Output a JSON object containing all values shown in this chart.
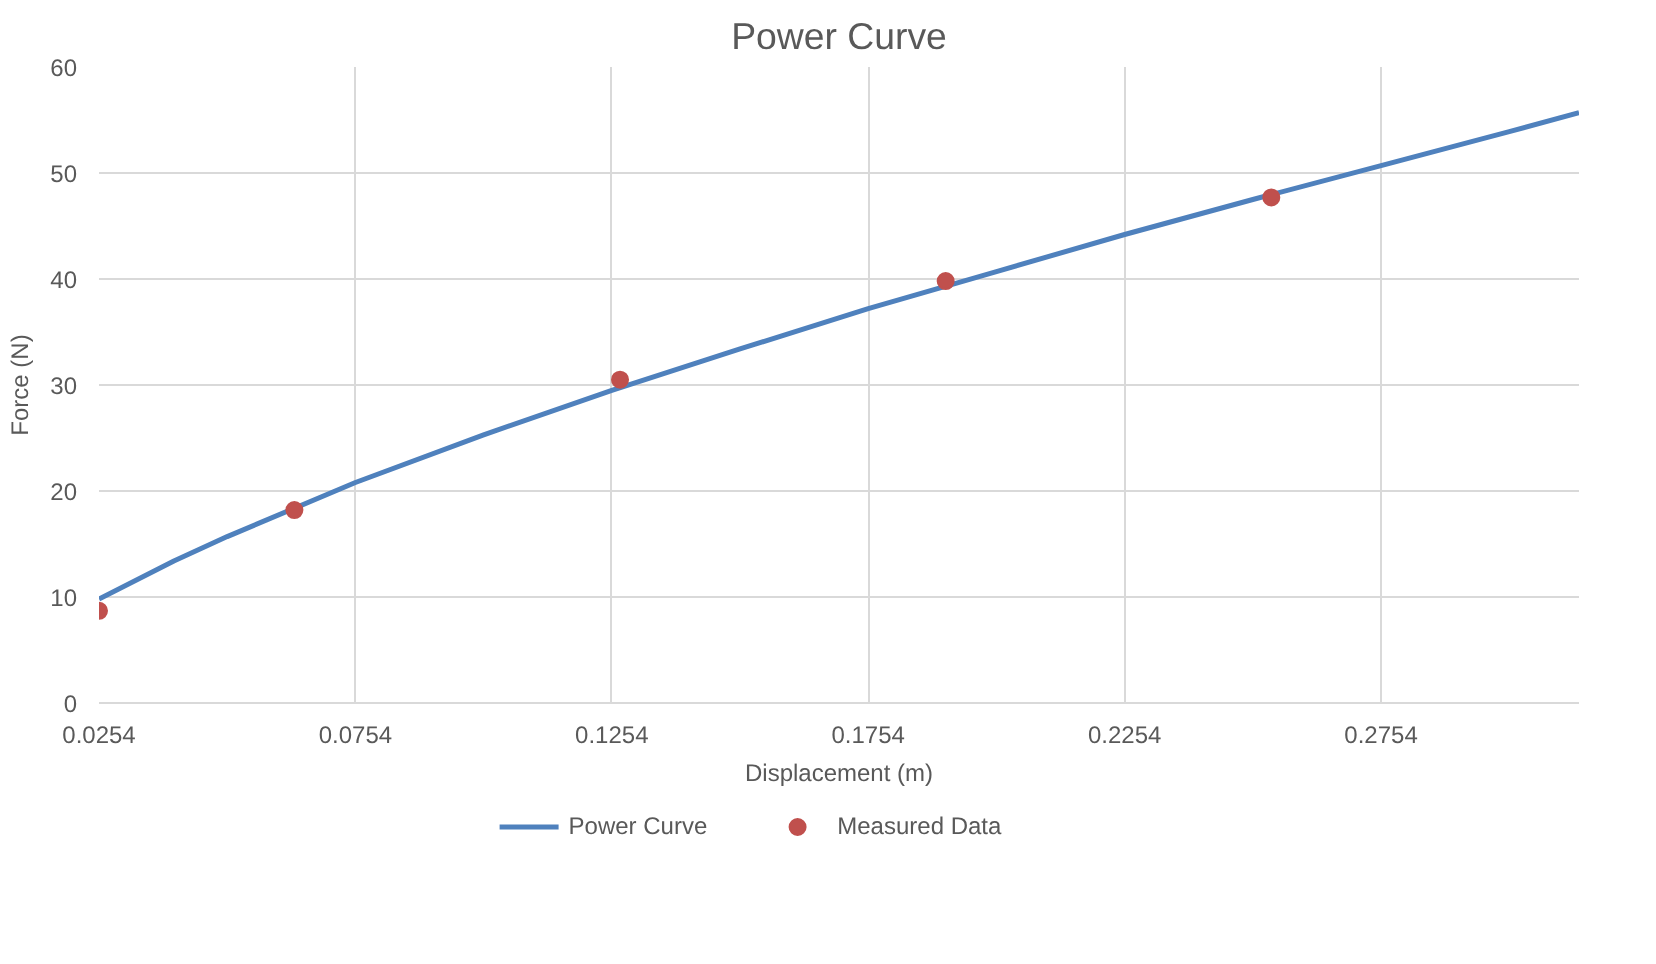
{
  "chart_data": {
    "type": "scatter",
    "title": "Power Curve",
    "xlabel": "Displacement (m)",
    "ylabel": "Force (N)",
    "xlim": [
      0.0254,
      0.314
    ],
    "ylim": [
      0,
      60
    ],
    "xticks": [
      0.0254,
      0.0754,
      0.1254,
      0.1754,
      0.2254,
      0.2754
    ],
    "yticks": [
      0,
      10,
      20,
      30,
      40,
      50,
      60
    ],
    "grid": true,
    "legend": "bottom",
    "series": [
      {
        "name": "Power Curve",
        "type": "line",
        "color": "#4f81bd",
        "marker": "none",
        "line_style": "solid",
        "x": [
          0.0254,
          0.04,
          0.0504,
          0.0754,
          0.1004,
          0.1254,
          0.1504,
          0.1754,
          0.2004,
          0.2254,
          0.2504,
          0.2754,
          0.3004,
          0.314
        ],
        "values": [
          9.8,
          13.4,
          15.7,
          20.8,
          25.3,
          29.5,
          33.4,
          37.2,
          40.7,
          44.2,
          47.5,
          50.7,
          53.9,
          55.7
        ]
      },
      {
        "name": "Measured Data",
        "color": "#c0504d",
        "marker": "circle",
        "x": [
          0.0254,
          0.0635,
          0.127,
          0.1905,
          0.254
        ],
        "values": [
          8.7,
          18.2,
          30.5,
          39.8,
          47.7
        ]
      }
    ]
  }
}
